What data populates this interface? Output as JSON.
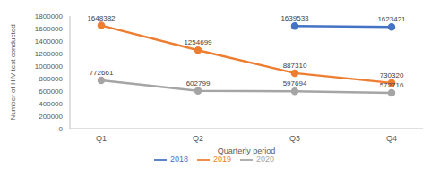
{
  "chart_data": {
    "type": "line",
    "x_label": "Quarterly period",
    "y_label": "Number of HIV test conducted",
    "categories": [
      "Q1",
      "Q2",
      "Q3",
      "Q4"
    ],
    "series": [
      {
        "name": "2018",
        "color": "#4472c4",
        "values": [
          null,
          null,
          1639533,
          1623421
        ]
      },
      {
        "name": "2019",
        "color": "#ed7d31",
        "values": [
          1648382,
          1254699,
          887310,
          730320
        ]
      },
      {
        "name": "2020",
        "color": "#a5a5a5",
        "values": [
          772661,
          602799,
          597694,
          572716
        ]
      }
    ],
    "ylim": [
      0,
      1800000
    ],
    "yticks": [
      0,
      200000,
      400000,
      600000,
      800000,
      1000000,
      1200000,
      1400000,
      1600000,
      1800000
    ],
    "grid": false,
    "legend": "bottom",
    "data_labels": true,
    "marker": "circle"
  }
}
